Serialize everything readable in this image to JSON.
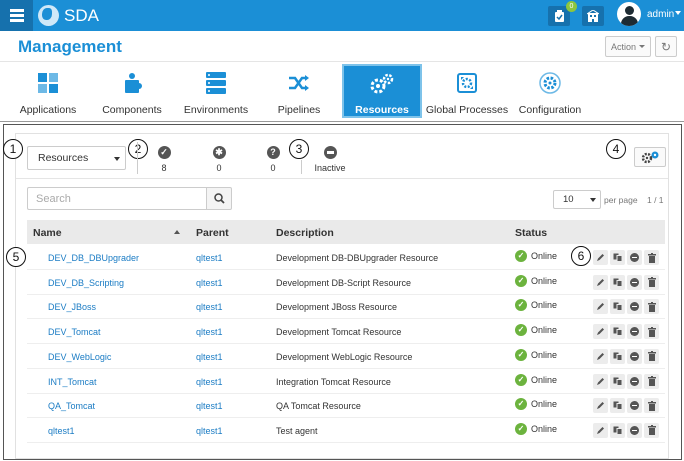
{
  "header": {
    "app_name": "SDA",
    "notification_count": "0",
    "user_name": "admin",
    "page_title": "Management",
    "action_label": "Action"
  },
  "tabs": [
    {
      "label": "Applications",
      "icon": "applications-icon",
      "active": false
    },
    {
      "label": "Components",
      "icon": "components-icon",
      "active": false
    },
    {
      "label": "Environments",
      "icon": "environments-icon",
      "active": false
    },
    {
      "label": "Pipelines",
      "icon": "pipelines-icon",
      "active": false
    },
    {
      "label": "Resources",
      "icon": "resources-icon",
      "active": true
    },
    {
      "label": "Global Processes",
      "icon": "global-processes-icon",
      "active": false
    },
    {
      "label": "Configuration",
      "icon": "configuration-icon",
      "active": false
    }
  ],
  "callouts": [
    "1",
    "2",
    "3",
    "4",
    "5",
    "6"
  ],
  "toolbar": {
    "type_select_value": "Resources",
    "stats": {
      "online": "8",
      "offline": "0",
      "unknown": "0",
      "inactive_label": "Inactive"
    },
    "search_placeholder": "Search",
    "per_page_value": "10",
    "per_page_label": "per page",
    "page_count": "1 / 1"
  },
  "table": {
    "columns": [
      "Name",
      "Parent",
      "Description",
      "Status"
    ],
    "rows": [
      {
        "name": "DEV_DB_DBUpgrader",
        "parent": "qltest1",
        "description": "Development DB-DBUpgrader Resource",
        "status": "Online"
      },
      {
        "name": "DEV_DB_Scripting",
        "parent": "qltest1",
        "description": "Development DB-Script Resource",
        "status": "Online"
      },
      {
        "name": "DEV_JBoss",
        "parent": "qltest1",
        "description": "Development JBoss Resource",
        "status": "Online"
      },
      {
        "name": "DEV_Tomcat",
        "parent": "qltest1",
        "description": "Development Tomcat Resource",
        "status": "Online"
      },
      {
        "name": "DEV_WebLogic",
        "parent": "qltest1",
        "description": "Development WebLogic Resource",
        "status": "Online"
      },
      {
        "name": "INT_Tomcat",
        "parent": "qltest1",
        "description": "Integration Tomcat Resource",
        "status": "Online"
      },
      {
        "name": "QA_Tomcat",
        "parent": "qltest1",
        "description": "QA Tomcat Resource",
        "status": "Online"
      },
      {
        "name": "qltest1",
        "parent": "qltest1",
        "description": "Test agent",
        "status": "Online"
      }
    ]
  },
  "colors": {
    "brand": "#1b8fd6",
    "online": "#6cb33e",
    "link": "#1b7cc4"
  }
}
